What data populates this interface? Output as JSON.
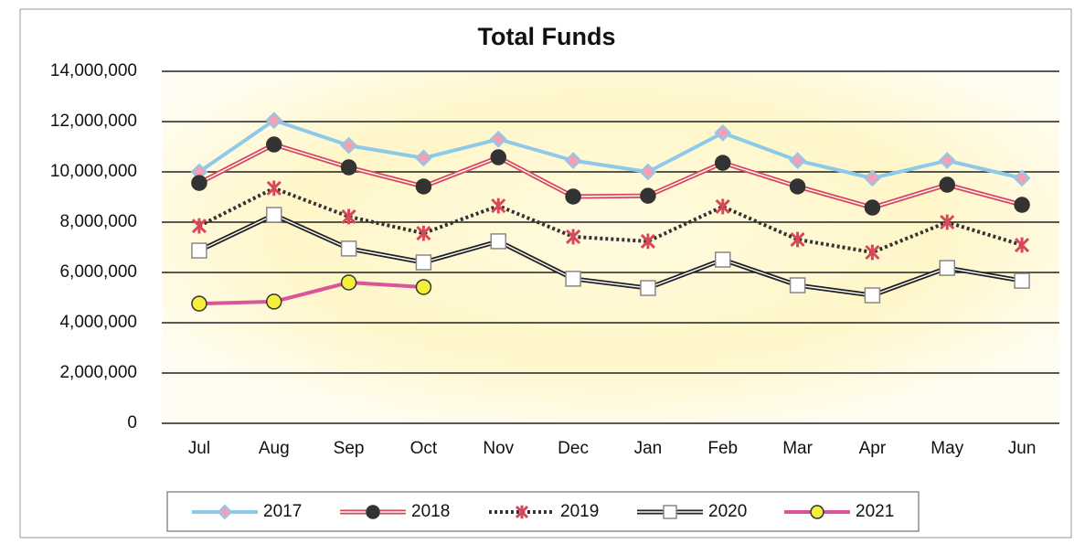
{
  "chart_data": {
    "type": "line",
    "title": "Total Funds",
    "categories": [
      "Jul",
      "Aug",
      "Sep",
      "Oct",
      "Nov",
      "Dec",
      "Jan",
      "Feb",
      "Mar",
      "Apr",
      "May",
      "Jun"
    ],
    "series": [
      {
        "name": "2017",
        "color": "#8ec9ea",
        "marker": "diamond",
        "marker_color": "#f2a0b4",
        "values": [
          10000000,
          12050000,
          11050000,
          10550000,
          11300000,
          10450000,
          10000000,
          11550000,
          10450000,
          9750000,
          10450000,
          9750000
        ]
      },
      {
        "name": "2018",
        "color": "#d9485a",
        "marker": "circle",
        "marker_color": "#333333",
        "double": true,
        "values": [
          9560000,
          11090000,
          10180000,
          9420000,
          10580000,
          9020000,
          9050000,
          10360000,
          9420000,
          8580000,
          9490000,
          8690000
        ]
      },
      {
        "name": "2019",
        "color": "#333333",
        "marker": "asterisk",
        "marker_color": "#d9485a",
        "dash": true,
        "values": [
          7850000,
          9350000,
          8220000,
          7560000,
          8650000,
          7420000,
          7240000,
          8620000,
          7310000,
          6800000,
          8000000,
          7090000
        ]
      },
      {
        "name": "2020",
        "color": "#222222",
        "marker": "square",
        "marker_color": "#ffffff",
        "double": true,
        "values": [
          6870000,
          8290000,
          6950000,
          6400000,
          7240000,
          5750000,
          5380000,
          6510000,
          5490000,
          5090000,
          6180000,
          5670000
        ]
      },
      {
        "name": "2021",
        "color": "#d9549a",
        "marker": "circle",
        "marker_color": "#f4ef3a",
        "values": [
          4760000,
          4840000,
          5600000,
          5420000,
          null,
          null,
          null,
          null,
          null,
          null,
          null,
          null
        ]
      }
    ],
    "ylim": [
      0,
      14000000
    ],
    "yticks": [
      0,
      {
        "value": 2000000,
        "label": "2,000,000"
      },
      {
        "value": 4000000,
        "label": "4,000,000"
      },
      {
        "value": 6000000,
        "label": "6,000,000"
      },
      {
        "value": 8000000,
        "label": "8,000,000"
      },
      {
        "value": 10000000,
        "label": "10,000,000"
      },
      {
        "value": 12000000,
        "label": "12,000,000"
      },
      {
        "value": 14000000,
        "label": "14,000,000"
      }
    ],
    "grid": true,
    "legend": "bottom"
  }
}
